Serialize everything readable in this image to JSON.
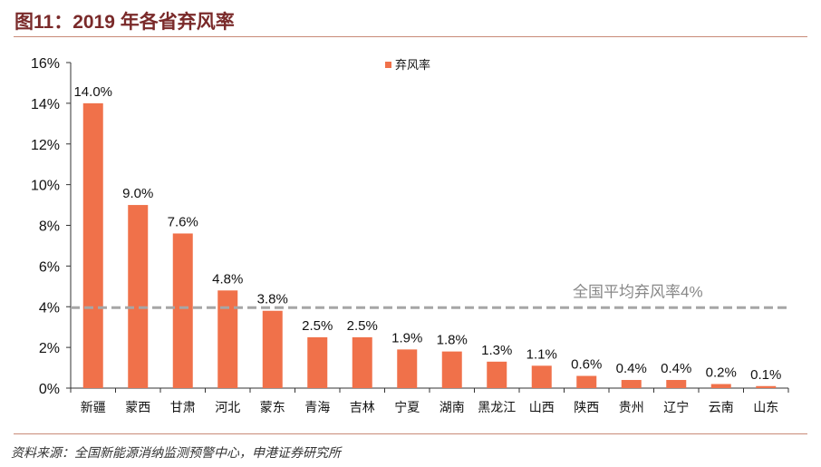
{
  "title": "图11：2019 年各省弃风率",
  "source": "资料来源：全国新能源消纳监测预警中心，申港证券研究所",
  "colors": {
    "bar": "#f0714a",
    "avg_line": "#a6a6a6",
    "title": "#7a2a2a"
  },
  "chart_data": {
    "type": "bar",
    "categories": [
      "新疆",
      "蒙西",
      "甘肃",
      "河北",
      "蒙东",
      "青海",
      "吉林",
      "宁夏",
      "湖南",
      "黑龙江",
      "山西",
      "陕西",
      "贵州",
      "辽宁",
      "云南",
      "山东"
    ],
    "series": [
      {
        "name": "弃风率",
        "values": [
          14.0,
          9.0,
          7.6,
          4.8,
          3.8,
          2.5,
          2.5,
          1.9,
          1.8,
          1.3,
          1.1,
          0.6,
          0.4,
          0.4,
          0.2,
          0.1
        ]
      }
    ],
    "data_labels": [
      "14.0%",
      "9.0%",
      "7.6%",
      "4.8%",
      "3.8%",
      "2.5%",
      "2.5%",
      "1.9%",
      "1.8%",
      "1.3%",
      "1.1%",
      "0.6%",
      "0.4%",
      "0.4%",
      "0.2%",
      "0.1%"
    ],
    "yticks": [
      "0%",
      "2%",
      "4%",
      "6%",
      "8%",
      "10%",
      "12%",
      "14%",
      "16%"
    ],
    "ylim": [
      0,
      16
    ],
    "reference_line": {
      "value": 4,
      "label": "全国平均弃风率4%",
      "style": "dashed"
    },
    "legend": {
      "position": "top-center"
    },
    "grid": false
  }
}
